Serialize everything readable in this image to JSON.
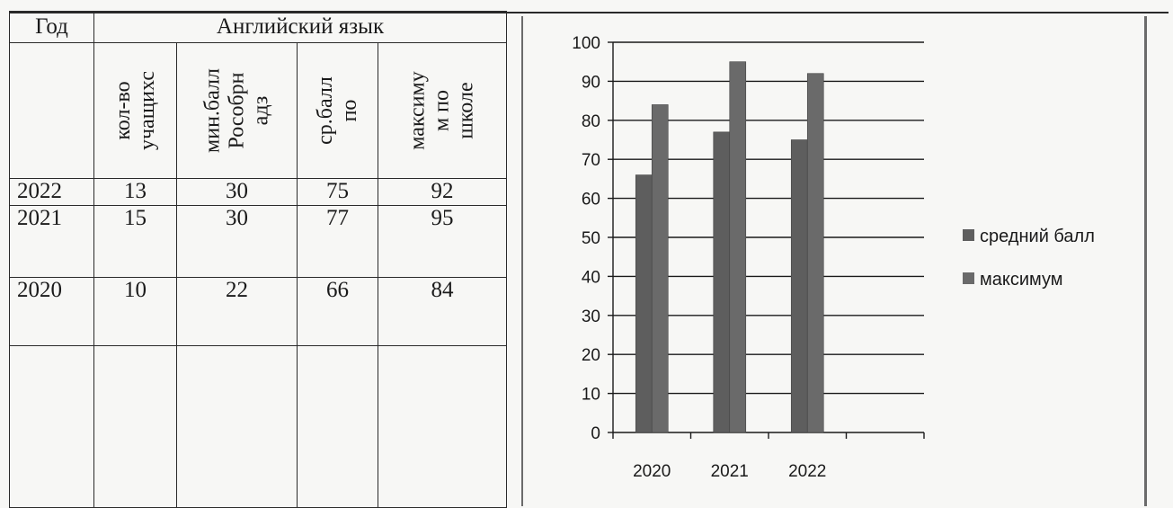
{
  "table": {
    "header": {
      "year_label": "Год",
      "subject": "Английский язык"
    },
    "columns": [
      "кол-во\nучащихс",
      "мин.балл\nРособрн\nадз",
      "ср.балл\nпо",
      "максиму\nм по\nшколе"
    ],
    "rows": [
      {
        "year": "2022",
        "count": "13",
        "min": "30",
        "avg": "75",
        "max": "92"
      },
      {
        "year": "2021",
        "count": "15",
        "min": "30",
        "avg": "77",
        "max": "95"
      },
      {
        "year": "2020",
        "count": "10",
        "min": "22",
        "avg": "66",
        "max": "84"
      }
    ]
  },
  "chart_data": {
    "type": "bar",
    "categories": [
      "2020",
      "2021",
      "2022"
    ],
    "series": [
      {
        "name": "средний балл",
        "values": [
          66,
          77,
          75
        ],
        "color": "#5e5e5e"
      },
      {
        "name": "максимум",
        "values": [
          84,
          95,
          92
        ],
        "color": "#6a6a6a"
      }
    ],
    "ylim": [
      0,
      100
    ],
    "yticks": [
      0,
      10,
      20,
      30,
      40,
      50,
      60,
      70,
      80,
      90,
      100
    ],
    "grid": true,
    "legend": "right",
    "title": "",
    "xlabel": "",
    "ylabel": ""
  }
}
